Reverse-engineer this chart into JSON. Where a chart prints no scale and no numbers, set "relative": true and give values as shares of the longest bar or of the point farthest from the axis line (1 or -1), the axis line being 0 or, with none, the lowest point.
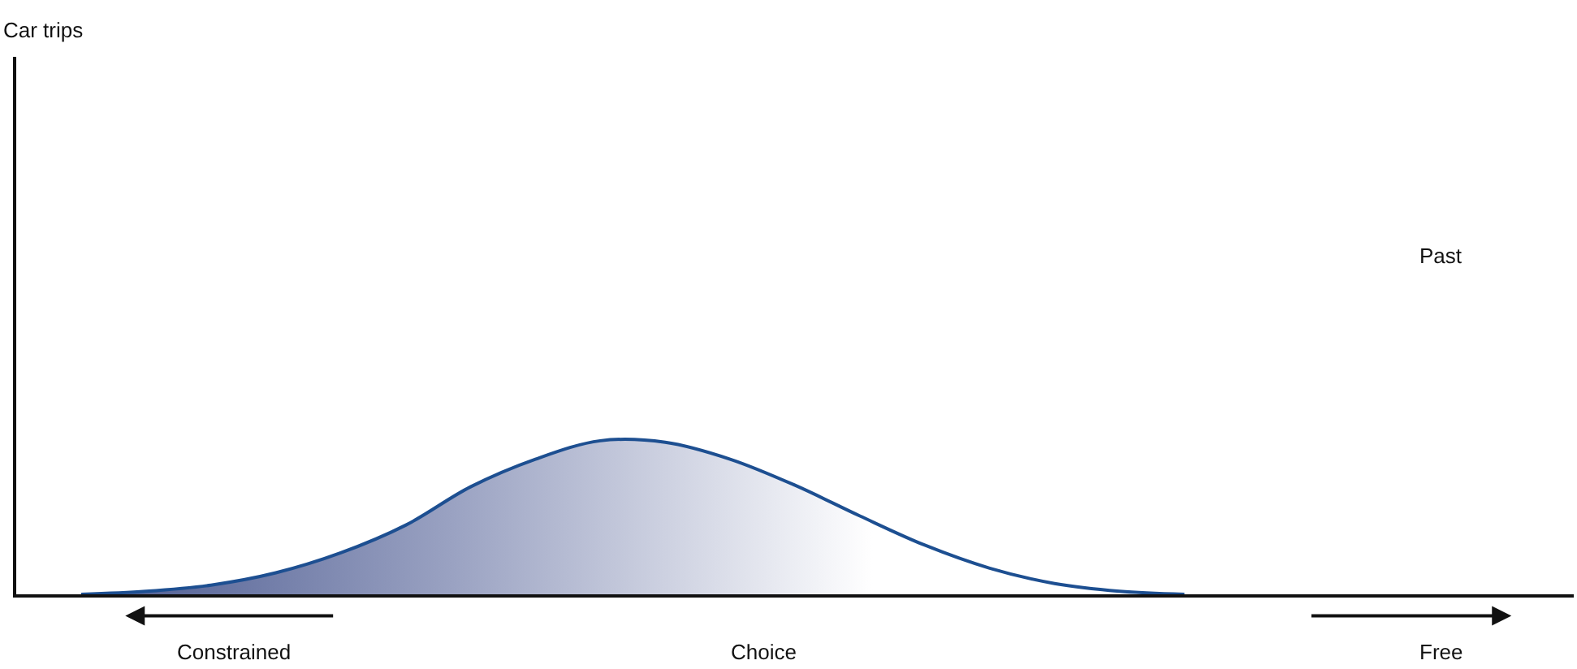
{
  "chart_data": {
    "type": "area",
    "relative": true,
    "xlabel": "Choice",
    "categories": [
      null,
      null,
      null,
      null,
      null,
      null,
      null,
      null,
      null,
      null,
      null,
      null,
      null,
      null,
      null,
      null,
      null,
      null,
      null,
      null,
      null,
      null,
      null,
      null,
      null
    ],
    "series": [
      {
        "color": "#1d4f91",
        "values": [
          null,
          0,
          0.02,
          0.06,
          0.14,
          0.27,
          0.45,
          0.7,
          0.88,
          1,
          0.99,
          0.88,
          0.71,
          0.51,
          0.32,
          0.17,
          0.07,
          0.02,
          0,
          null,
          null,
          null,
          null,
          null,
          null
        ]
      }
    ],
    "annotations": [
      "Car trips",
      "Past",
      "Constrained",
      "Free"
    ],
    "legend": false
  }
}
